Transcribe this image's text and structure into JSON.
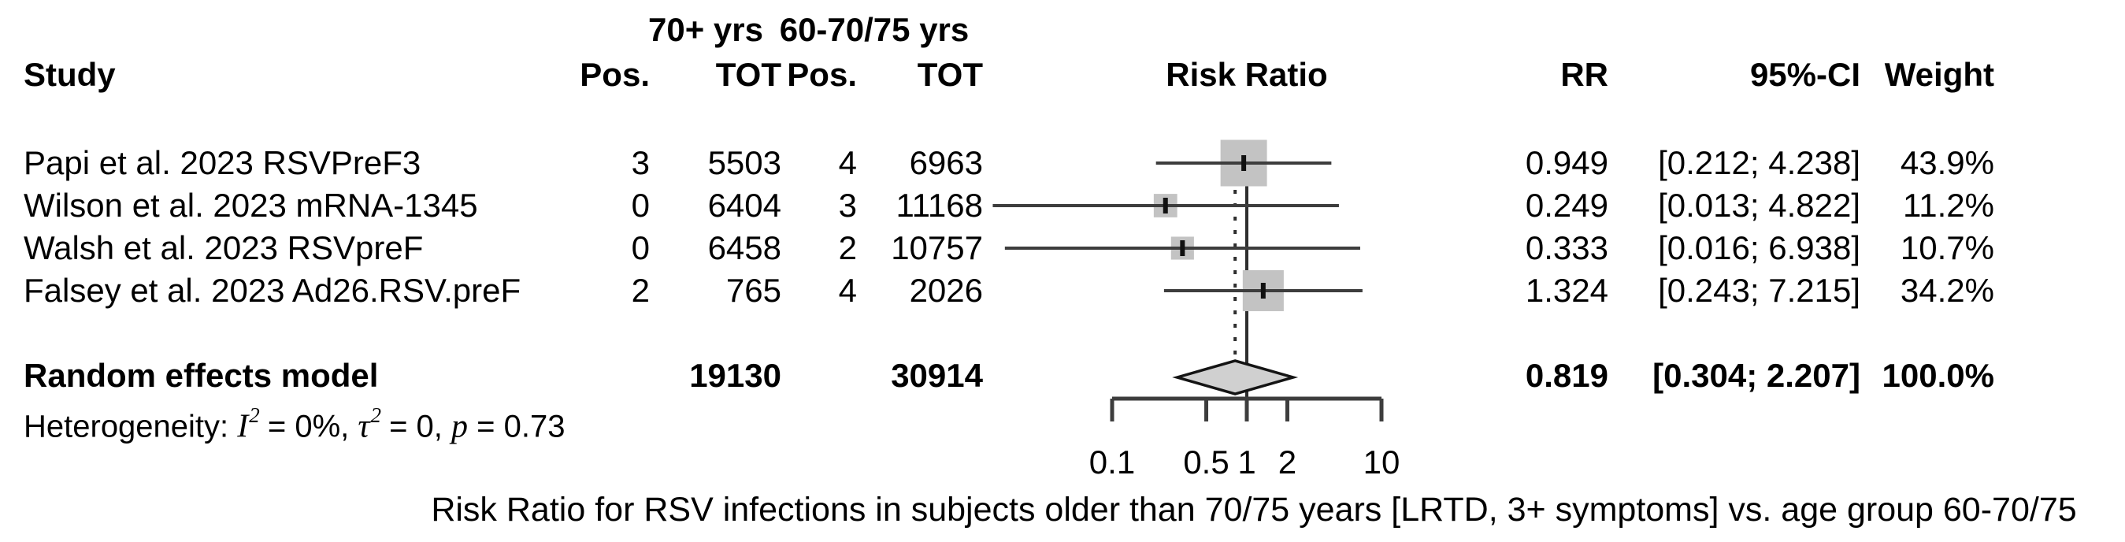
{
  "table": {
    "group_headers": {
      "g1": "70+ yrs",
      "g2": "60-70/75 yrs"
    },
    "columns": {
      "study": "Study",
      "pos1": "Pos.",
      "tot1": "TOT",
      "pos2": "Pos.",
      "tot2": "TOT",
      "risk_ratio": "Risk Ratio",
      "rr": "RR",
      "ci": "95%-CI",
      "weight": "Weight"
    }
  },
  "chart_data": {
    "type": "forest",
    "x_scale": "log10",
    "axis_ticks": [
      0.1,
      0.5,
      1,
      2,
      10
    ],
    "axis_tick_labels": [
      "0.1",
      "0.5",
      "1",
      "2",
      "10"
    ],
    "reference_line": 1,
    "pooled_estimate_line": 0.819,
    "studies": [
      {
        "name": "Papi et al. 2023 RSVPreF3",
        "pos_70plus": "3",
        "tot_70plus": "5503",
        "pos_60to75": "4",
        "tot_60to75": "6963",
        "rr": 0.949,
        "ci_low": 0.212,
        "ci_high": 4.238,
        "rr_text": "0.949",
        "ci_text": "[0.212; 4.238]",
        "weight_pct": 43.9,
        "weight_text": "43.9%"
      },
      {
        "name": "Wilson et al. 2023 mRNA-1345",
        "pos_70plus": "0",
        "tot_70plus": "6404",
        "pos_60to75": "3",
        "tot_60to75": "11168",
        "rr": 0.249,
        "ci_low": 0.013,
        "ci_high": 4.822,
        "rr_text": "0.249",
        "ci_text": "[0.013; 4.822]",
        "weight_pct": 11.2,
        "weight_text": "11.2%"
      },
      {
        "name": "Walsh et al. 2023 RSVpreF",
        "pos_70plus": "0",
        "tot_70plus": "6458",
        "pos_60to75": "2",
        "tot_60to75": "10757",
        "rr": 0.333,
        "ci_low": 0.016,
        "ci_high": 6.938,
        "rr_text": "0.333",
        "ci_text": "[0.016; 6.938]",
        "weight_pct": 10.7,
        "weight_text": "10.7%"
      },
      {
        "name": "Falsey et al. 2023 Ad26.RSV.preF",
        "pos_70plus": "2",
        "tot_70plus": "765",
        "pos_60to75": "4",
        "tot_60to75": "2026",
        "rr": 1.324,
        "ci_low": 0.243,
        "ci_high": 7.215,
        "rr_text": "1.324",
        "ci_text": "[0.243; 7.215]",
        "weight_pct": 34.2,
        "weight_text": "34.2%"
      }
    ],
    "pooled": {
      "label": "Random effects model",
      "tot_70plus": "19130",
      "tot_60to75": "30914",
      "rr": 0.819,
      "ci_low": 0.304,
      "ci_high": 2.207,
      "rr_text": "0.819",
      "ci_text": "[0.304; 2.207]",
      "weight_text": "100.0%"
    },
    "xlabel": "Risk Ratio",
    "xlim": [
      0.1,
      10
    ]
  },
  "heterogeneity": {
    "prefix": "Heterogeneity: ",
    "i_sym": "I",
    "i_sup": "2",
    "i_rest": " = 0%, ",
    "tau_sym": "τ",
    "tau_sup": "2",
    "tau_rest": " = 0, ",
    "p_sym": "p",
    "p_rest": " = 0.73"
  },
  "caption": "Risk Ratio for RSV infections in subjects older than 70/75 years [LRTD, 3+ symptoms] vs. age group 60-70/75",
  "colors": {
    "text": "#000000",
    "ci_line": "#3d3d3d",
    "axis": "#3d3d3d",
    "square_fill": "#c3c3c3",
    "marker": "#111111",
    "diamond_fill": "#d0d0d0",
    "diamond_stroke": "#141414",
    "ref_line": "#2e2e2e",
    "dashed_line": "#2e2e2e"
  }
}
